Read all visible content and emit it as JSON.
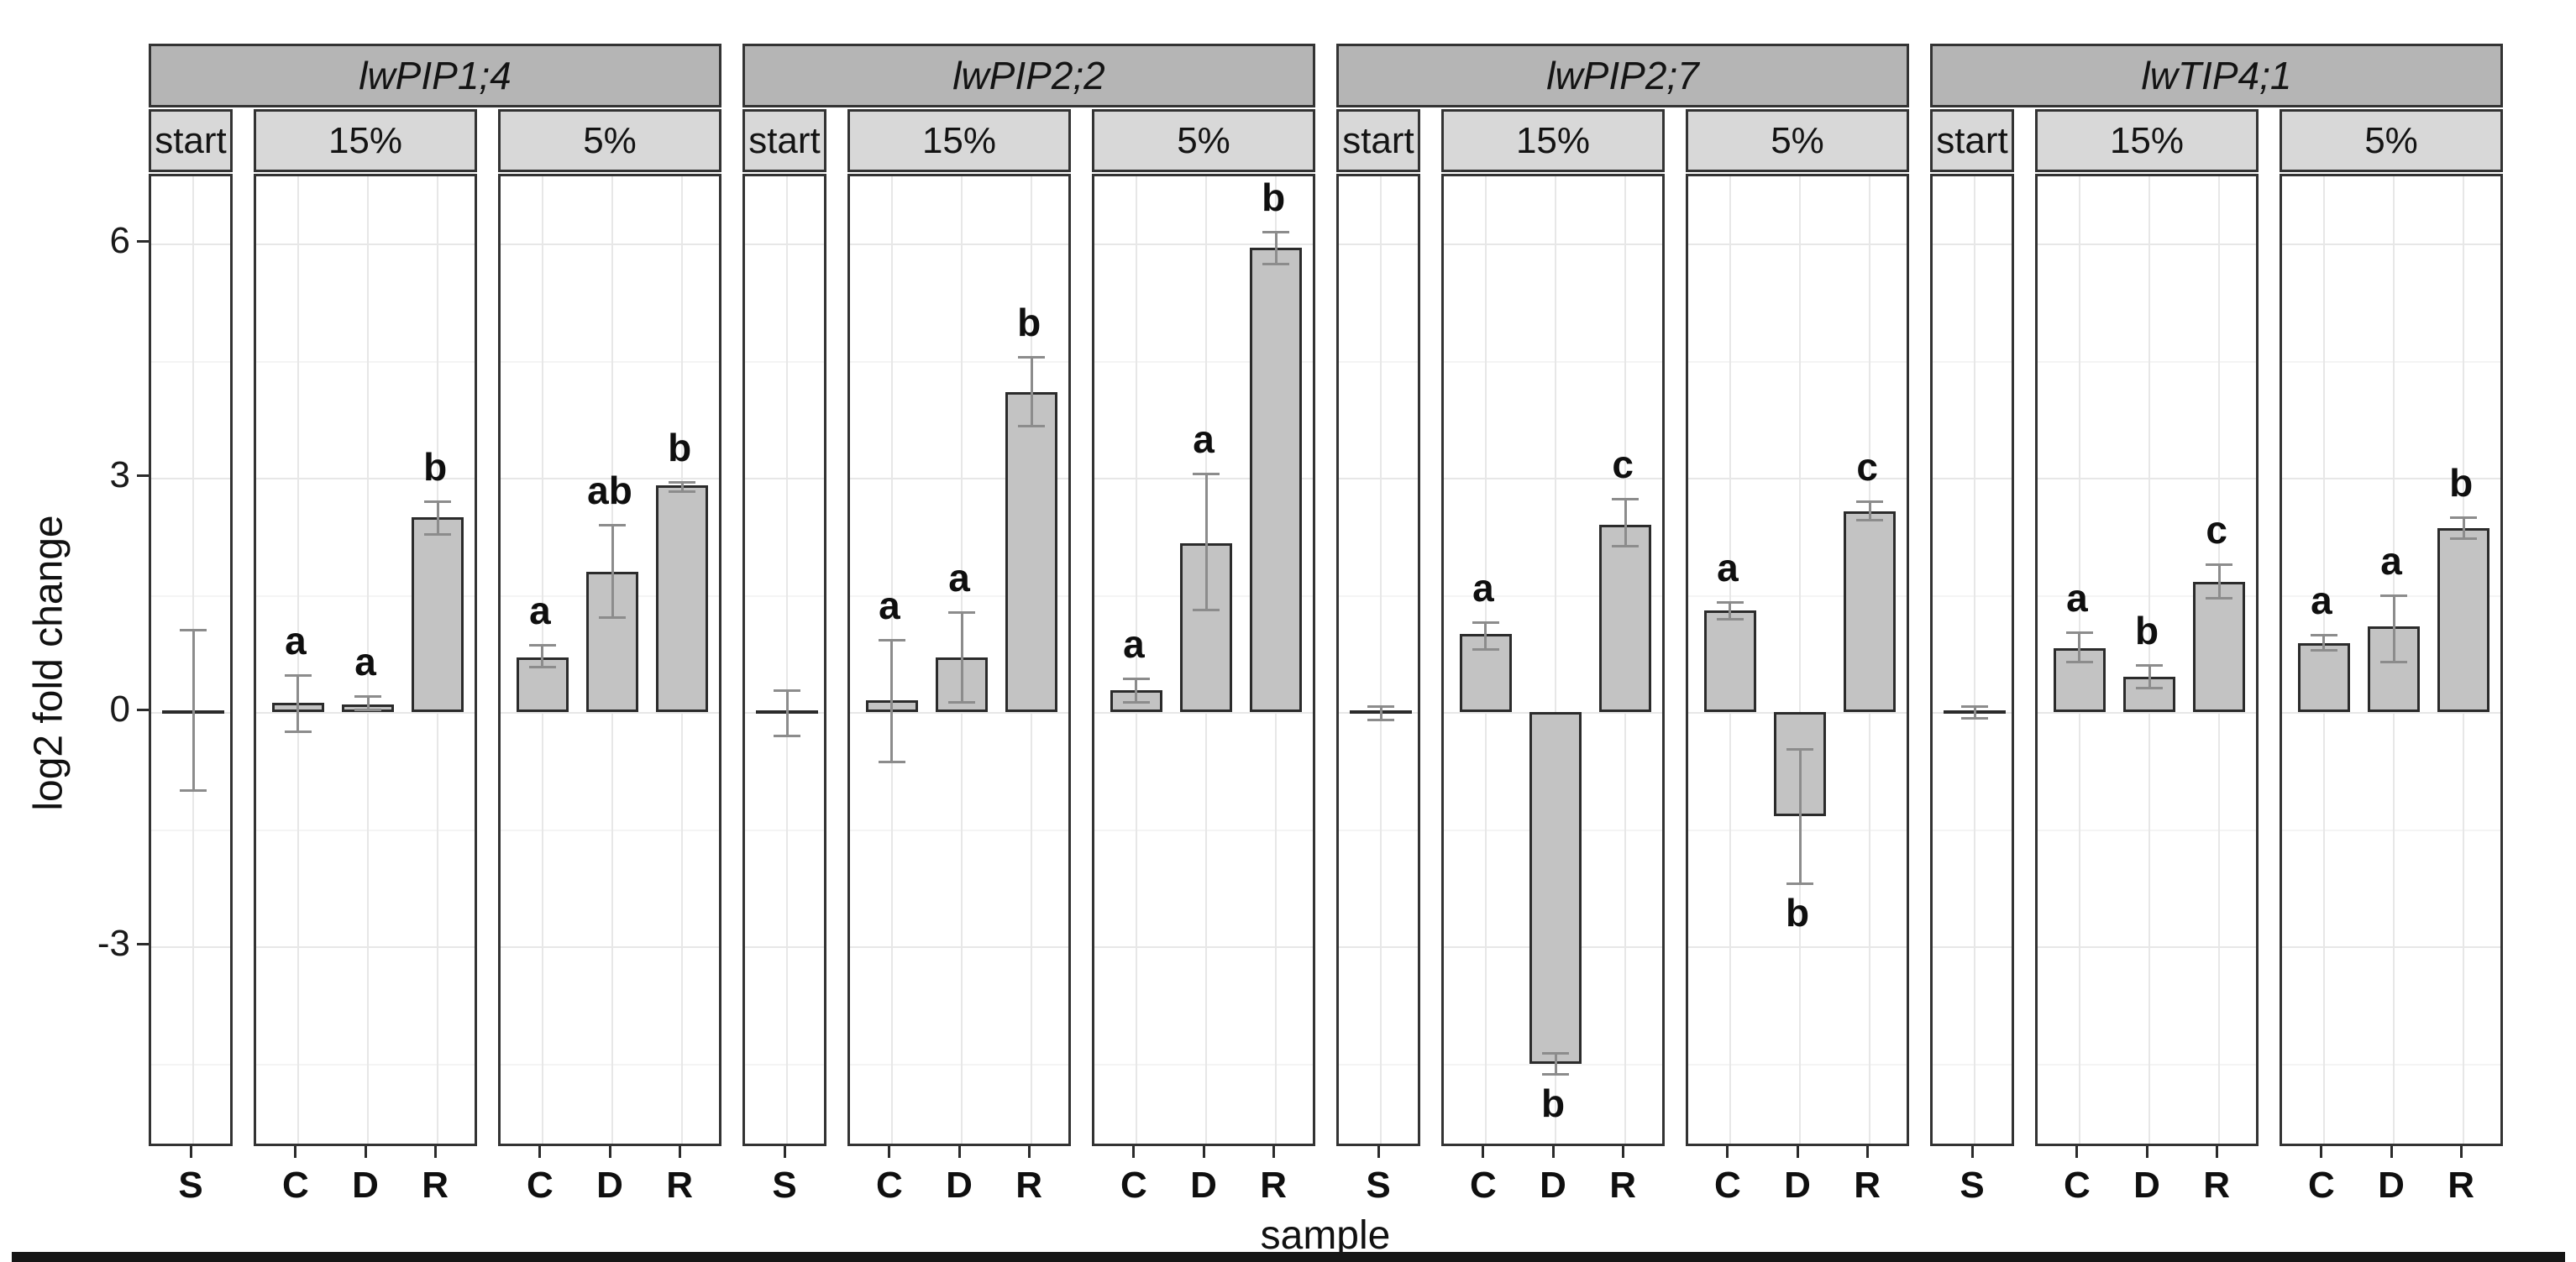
{
  "figure_title": "",
  "y_axis": {
    "label": "log2 fold change",
    "tick_labels": [
      "6",
      "3",
      "0",
      "-3"
    ],
    "tick_values": [
      6,
      3,
      0,
      -3
    ]
  },
  "x_axis": {
    "label": "sample"
  },
  "colors": {
    "strip_outer": "#b5b5b5",
    "strip_inner": "#d8d8d8",
    "bar_fill": "#c3c3c3",
    "bar_border": "#2b2b2b",
    "error_bar": "#8c8c8c",
    "grid_major": "#e7e7e7",
    "grid_minor": "#f4f4f4",
    "panel_border": "#333333",
    "bottom_bar": "#161616"
  },
  "chart_data": {
    "type": "bar",
    "title": "",
    "xlabel": "sample",
    "ylabel": "log2 fold change",
    "ylim": [
      -5.6,
      6.9
    ],
    "y_major_gridlines": [
      -3,
      0,
      3,
      6
    ],
    "y_minor_gridlines": [
      -4.5,
      -1.5,
      1.5,
      4.5
    ],
    "grid": true,
    "legend_position": "none",
    "facets": [
      {
        "gene": "lwPIP1;4",
        "panels": [
          {
            "condition": "start",
            "bars": [
              {
                "sample": "S",
                "value": 0,
                "err_lo": -1.0,
                "err_hi": 1.05,
                "sig": ""
              }
            ]
          },
          {
            "condition": "15%",
            "bars": [
              {
                "sample": "C",
                "value": 0.12,
                "err_lo": -0.25,
                "err_hi": 0.47,
                "sig": "a"
              },
              {
                "sample": "D",
                "value": 0.1,
                "err_lo": 0.03,
                "err_hi": 0.2,
                "sig": "a"
              },
              {
                "sample": "R",
                "value": 2.5,
                "err_lo": 2.28,
                "err_hi": 2.7,
                "sig": "b"
              }
            ]
          },
          {
            "condition": "5%",
            "bars": [
              {
                "sample": "C",
                "value": 0.7,
                "err_lo": 0.58,
                "err_hi": 0.86,
                "sig": "a"
              },
              {
                "sample": "D",
                "value": 1.8,
                "err_lo": 1.22,
                "err_hi": 2.4,
                "sig": "ab"
              },
              {
                "sample": "R",
                "value": 2.9,
                "err_lo": 2.83,
                "err_hi": 2.95,
                "sig": "b"
              }
            ]
          }
        ]
      },
      {
        "gene": "lwPIP2;2",
        "panels": [
          {
            "condition": "start",
            "bars": [
              {
                "sample": "S",
                "value": 0,
                "err_lo": -0.3,
                "err_hi": 0.28,
                "sig": ""
              }
            ]
          },
          {
            "condition": "15%",
            "bars": [
              {
                "sample": "C",
                "value": 0.15,
                "err_lo": -0.63,
                "err_hi": 0.92,
                "sig": "a"
              },
              {
                "sample": "D",
                "value": 0.7,
                "err_lo": 0.13,
                "err_hi": 1.28,
                "sig": "a"
              },
              {
                "sample": "R",
                "value": 4.1,
                "err_lo": 3.67,
                "err_hi": 4.55,
                "sig": "b"
              }
            ]
          },
          {
            "condition": "5%",
            "bars": [
              {
                "sample": "C",
                "value": 0.28,
                "err_lo": 0.13,
                "err_hi": 0.43,
                "sig": "a"
              },
              {
                "sample": "D",
                "value": 2.16,
                "err_lo": 1.31,
                "err_hi": 3.05,
                "sig": "a"
              },
              {
                "sample": "R",
                "value": 5.95,
                "err_lo": 5.74,
                "err_hi": 6.15,
                "sig": "b"
              }
            ]
          }
        ]
      },
      {
        "gene": "lwPIP2;7",
        "panels": [
          {
            "condition": "start",
            "bars": [
              {
                "sample": "S",
                "value": 0,
                "err_lo": -0.1,
                "err_hi": 0.08,
                "sig": ""
              }
            ]
          },
          {
            "condition": "15%",
            "bars": [
              {
                "sample": "C",
                "value": 1.0,
                "err_lo": 0.81,
                "err_hi": 1.15,
                "sig": "a"
              },
              {
                "sample": "D",
                "value": -4.5,
                "err_lo": -4.63,
                "err_hi": -4.37,
                "sig": "b"
              },
              {
                "sample": "R",
                "value": 2.4,
                "err_lo": 2.13,
                "err_hi": 2.73,
                "sig": "c"
              }
            ]
          },
          {
            "condition": "5%",
            "bars": [
              {
                "sample": "C",
                "value": 1.3,
                "err_lo": 1.19,
                "err_hi": 1.41,
                "sig": "a"
              },
              {
                "sample": "D",
                "value": -1.33,
                "err_lo": -2.19,
                "err_hi": -0.47,
                "sig": "b"
              },
              {
                "sample": "R",
                "value": 2.57,
                "err_lo": 2.46,
                "err_hi": 2.7,
                "sig": "c"
              }
            ]
          }
        ]
      },
      {
        "gene": "lwTIP4;1",
        "panels": [
          {
            "condition": "start",
            "bars": [
              {
                "sample": "S",
                "value": 0,
                "err_lo": -0.08,
                "err_hi": 0.07,
                "sig": ""
              }
            ]
          },
          {
            "condition": "15%",
            "bars": [
              {
                "sample": "C",
                "value": 0.82,
                "err_lo": 0.64,
                "err_hi": 1.02,
                "sig": "a"
              },
              {
                "sample": "D",
                "value": 0.45,
                "err_lo": 0.31,
                "err_hi": 0.6,
                "sig": "b"
              },
              {
                "sample": "R",
                "value": 1.67,
                "err_lo": 1.46,
                "err_hi": 1.89,
                "sig": "c"
              }
            ]
          },
          {
            "condition": "5%",
            "bars": [
              {
                "sample": "C",
                "value": 0.88,
                "err_lo": 0.8,
                "err_hi": 0.99,
                "sig": "a"
              },
              {
                "sample": "D",
                "value": 1.1,
                "err_lo": 0.64,
                "err_hi": 1.5,
                "sig": "a"
              },
              {
                "sample": "R",
                "value": 2.36,
                "err_lo": 2.23,
                "err_hi": 2.49,
                "sig": "b"
              }
            ]
          }
        ]
      }
    ]
  }
}
